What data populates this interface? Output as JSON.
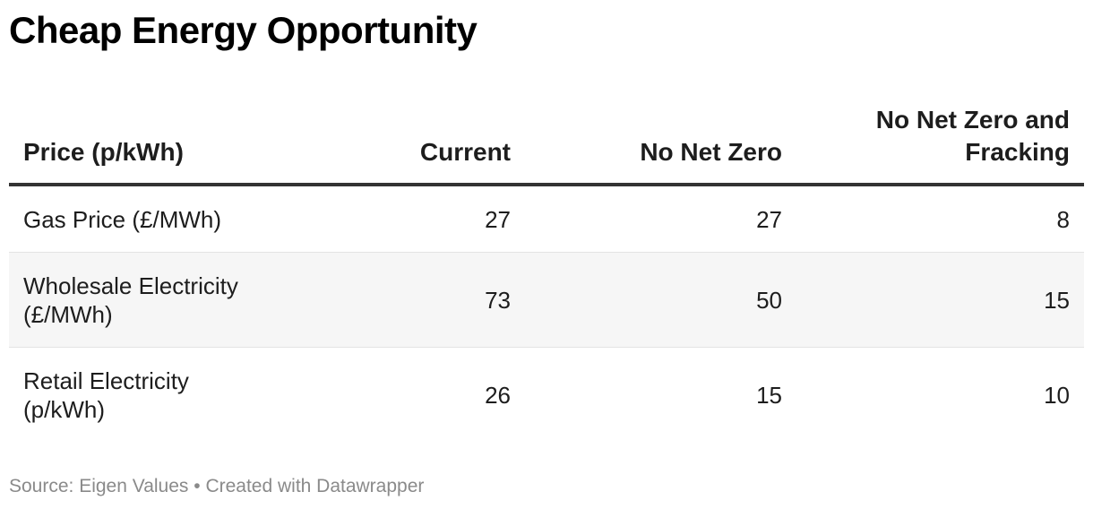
{
  "chart_data": {
    "type": "table",
    "title": "Cheap Energy Opportunity",
    "columns": [
      "Price (p/kWh)",
      "Current",
      "No Net Zero",
      "No Net Zero and Fracking"
    ],
    "rows": [
      {
        "label": "Gas Price (£/MWh)",
        "values": [
          "27",
          "27",
          "8"
        ]
      },
      {
        "label": "Wholesale Electricity (£/MWh)",
        "values": [
          "73",
          "50",
          "15"
        ]
      },
      {
        "label": "Retail Electricity (p/kWh)",
        "values": [
          "26",
          "15",
          "10"
        ]
      }
    ],
    "footer": {
      "source": "Source: Eigen Values",
      "separator": " • ",
      "credit": "Created with Datawrapper"
    }
  }
}
